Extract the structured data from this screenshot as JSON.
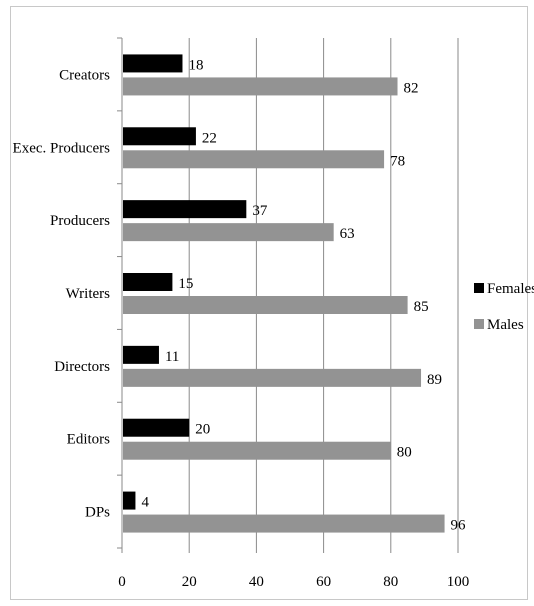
{
  "chart_data": {
    "type": "bar",
    "orientation": "horizontal",
    "categories": [
      "Creators",
      "Exec. Producers",
      "Producers",
      "Writers",
      "Directors",
      "Editors",
      "DPs"
    ],
    "series": [
      {
        "name": "Females",
        "color": "#000000",
        "values": [
          18,
          22,
          37,
          15,
          11,
          20,
          4
        ]
      },
      {
        "name": "Males",
        "color": "#939393",
        "values": [
          82,
          78,
          63,
          85,
          89,
          80,
          96
        ]
      }
    ],
    "x_ticks": [
      0,
      20,
      40,
      60,
      80,
      100
    ],
    "xlim": [
      0,
      100
    ],
    "grid": "vertical",
    "legend_position": "right",
    "title": "",
    "xlabel": "",
    "ylabel": ""
  }
}
